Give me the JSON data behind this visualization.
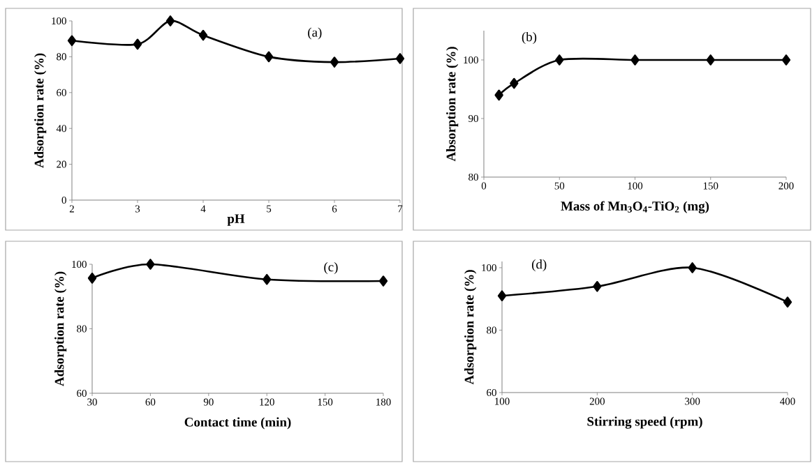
{
  "chart_data": [
    {
      "type": "line",
      "annotations": [
        "(a)"
      ],
      "xlabel": "pH",
      "ylabel": "Adsorption rate (%)",
      "x": [
        2,
        3,
        3.5,
        4,
        5,
        6,
        7
      ],
      "series": [
        {
          "color": "#000000",
          "values": [
            89,
            87,
            100,
            92,
            80,
            77,
            79
          ]
        }
      ],
      "xlim": [
        2,
        7
      ],
      "xticks": [
        2,
        3,
        4,
        5,
        6,
        7
      ],
      "ylim": [
        0,
        100
      ],
      "yticks": [
        0,
        20,
        40,
        60,
        80,
        100
      ],
      "marker": "diamond",
      "line_style": "solid"
    },
    {
      "type": "line",
      "annotations": [
        "(b)"
      ],
      "xlabel": "Mass of Mn$_{3}$O$_{4}$-TiO$_{2}$ (mg)",
      "ylabel": "Absorption rate (%)",
      "x": [
        10,
        20,
        50,
        100,
        150,
        200
      ],
      "series": [
        {
          "color": "#000000",
          "values": [
            94,
            96,
            100,
            100,
            100,
            100
          ]
        }
      ],
      "xlim": [
        0,
        200
      ],
      "xticks": [
        0,
        50,
        100,
        150,
        200
      ],
      "ylim": [
        80,
        105
      ],
      "yticks": [
        80,
        90,
        100
      ],
      "marker": "diamond",
      "line_style": "solid"
    },
    {
      "type": "line",
      "annotations": [
        "(c)"
      ],
      "xlabel": "Contact time (min)",
      "ylabel": "Adsorption rate (%)",
      "x": [
        30,
        60,
        120,
        180
      ],
      "series": [
        {
          "color": "#000000",
          "values": [
            95.7,
            100,
            95.3,
            94.8
          ]
        }
      ],
      "xlim": [
        30,
        180
      ],
      "xticks": [
        30,
        60,
        90,
        120,
        150,
        180
      ],
      "ylim": [
        60,
        100
      ],
      "yticks": [
        60,
        80,
        100
      ],
      "marker": "diamond",
      "line_style": "solid"
    },
    {
      "type": "line",
      "annotations": [
        "(d)"
      ],
      "xlabel": "Stirring speed (rpm)",
      "ylabel": "Adsorption rate (%)",
      "x": [
        100,
        200,
        300,
        400
      ],
      "series": [
        {
          "color": "#000000",
          "values": [
            91,
            94,
            100,
            89
          ]
        }
      ],
      "xlim": [
        100,
        400
      ],
      "xticks": [
        100,
        200,
        300,
        400
      ],
      "ylim": [
        60,
        102
      ],
      "yticks": [
        60,
        80,
        100
      ],
      "marker": "diamond",
      "line_style": "solid"
    }
  ]
}
